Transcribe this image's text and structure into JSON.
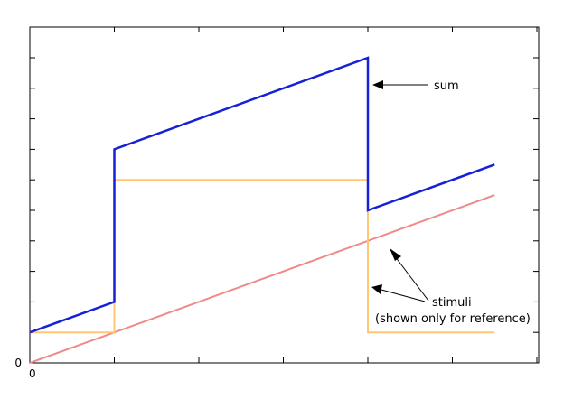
{
  "chart_data": {
    "type": "line",
    "xlim": [
      0,
      6
    ],
    "ylim": [
      0,
      10
    ],
    "grid": false,
    "x_tick_values": [
      0,
      1,
      2,
      3,
      4,
      5,
      6
    ],
    "x_tick_labels": [
      "0",
      "",
      "",
      "",
      "",
      "",
      ""
    ],
    "y_tick_values": [
      0,
      1,
      2,
      3,
      4,
      5,
      6,
      7,
      8,
      9,
      10
    ],
    "y_tick_labels": [
      "0",
      "",
      "",
      "",
      "",
      "",
      "",
      "",
      "",
      "",
      ""
    ],
    "colors": {
      "sum": "#1520d8",
      "stimulus_pulse": "#ffc870",
      "stimulus_ramp": "#f08a8a"
    },
    "series": [
      {
        "key": "ramp",
        "color": "#f08a8a",
        "points": [
          [
            0,
            0
          ],
          [
            5.5,
            5.5
          ]
        ]
      },
      {
        "key": "pulse",
        "color": "#ffc870",
        "points": [
          [
            0,
            1
          ],
          [
            1,
            1
          ],
          [
            1,
            6
          ],
          [
            4,
            6
          ],
          [
            4,
            1
          ],
          [
            5.5,
            1
          ]
        ]
      },
      {
        "key": "sum",
        "color": "#1520d8",
        "points": [
          [
            0,
            1
          ],
          [
            1,
            2
          ],
          [
            1,
            7
          ],
          [
            4,
            10
          ],
          [
            4,
            5
          ],
          [
            5.5,
            6.5
          ]
        ]
      }
    ],
    "annotations": [
      {
        "key": "sum",
        "text": "sum"
      },
      {
        "key": "stimuli",
        "lines": [
          "stimuli",
          "(shown only for reference)"
        ]
      }
    ]
  }
}
